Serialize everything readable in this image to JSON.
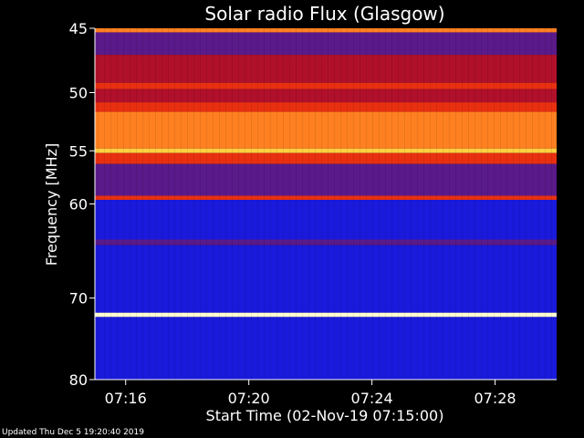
{
  "chart_data": {
    "type": "heatmap",
    "title": "Solar radio Flux (Glasgow)",
    "ylabel": "Frequency [MHz]",
    "xlabel": "Start Time (02-Nov-19 07:15:00)",
    "y_ticks": [
      45,
      50,
      55,
      60,
      70,
      80
    ],
    "y_scale": "log",
    "ylim": [
      45,
      80
    ],
    "y_direction": "increasing-downward",
    "x_ticks": [
      "07:16",
      "07:20",
      "07:24",
      "07:28"
    ],
    "x_tick_minutes": [
      16,
      20,
      24,
      28
    ],
    "xlim_minutes": [
      15,
      30
    ],
    "colormap": [
      "#0a0a4a",
      "#1a1adc",
      "#5a1a8a",
      "#b0102a",
      "#e83010",
      "#ff8020",
      "#ffd040",
      "#ffffd0"
    ],
    "bands": [
      {
        "from": 45.0,
        "to": 45.3,
        "level": 5
      },
      {
        "from": 45.3,
        "to": 47.0,
        "level": 2
      },
      {
        "from": 47.0,
        "to": 49.2,
        "level": 3
      },
      {
        "from": 49.2,
        "to": 49.7,
        "level": 4
      },
      {
        "from": 49.7,
        "to": 50.8,
        "level": 3
      },
      {
        "from": 50.8,
        "to": 51.6,
        "level": 4
      },
      {
        "from": 51.6,
        "to": 54.8,
        "level": 5
      },
      {
        "from": 54.8,
        "to": 55.2,
        "level": 6
      },
      {
        "from": 55.2,
        "to": 56.2,
        "level": 4
      },
      {
        "from": 56.2,
        "to": 59.2,
        "level": 2
      },
      {
        "from": 59.2,
        "to": 59.6,
        "level": 4
      },
      {
        "from": 59.6,
        "to": 63.6,
        "level": 1
      },
      {
        "from": 63.6,
        "to": 64.2,
        "level": 2
      },
      {
        "from": 64.2,
        "to": 71.7,
        "level": 1
      },
      {
        "from": 71.7,
        "to": 72.2,
        "level": 7
      },
      {
        "from": 72.2,
        "to": 80.0,
        "level": 1
      }
    ]
  },
  "footer": {
    "updated": "Updated Thu Dec  5 19:20:40 2019"
  }
}
